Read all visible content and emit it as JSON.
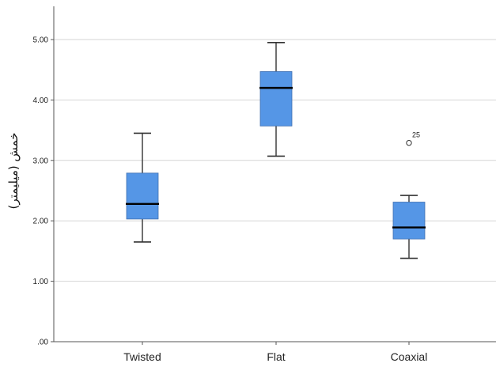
{
  "chart_data": {
    "type": "box",
    "title": "",
    "xlabel": "",
    "ylabel": "خمش (میلیمتر)",
    "ylim": [
      0,
      5.5
    ],
    "yticks": [
      0,
      1,
      2,
      3,
      4,
      5
    ],
    "ytick_labels": [
      ".00",
      "1.00",
      "2.00",
      "3.00",
      "4.00",
      "5.00"
    ],
    "grid": true,
    "categories": [
      "Twisted",
      "Flat",
      "Coaxial"
    ],
    "boxes": [
      {
        "category": "Twisted",
        "min": 1.65,
        "q1": 2.03,
        "median": 2.28,
        "q3": 2.79,
        "max": 3.45,
        "outliers": []
      },
      {
        "category": "Flat",
        "min": 3.07,
        "q1": 3.57,
        "median": 4.2,
        "q3": 4.47,
        "max": 4.95,
        "outliers": []
      },
      {
        "category": "Coaxial",
        "min": 1.38,
        "q1": 1.7,
        "median": 1.89,
        "q3": 2.31,
        "max": 2.42,
        "outliers": [
          {
            "value": 3.29,
            "label": "25"
          }
        ]
      }
    ],
    "colors": {
      "box_fill": "#5596e6",
      "box_stroke": "#3f6fb0",
      "median": "#000000",
      "whisker": "#333333",
      "grid": "#d6d6d6",
      "axis": "#555555"
    }
  }
}
